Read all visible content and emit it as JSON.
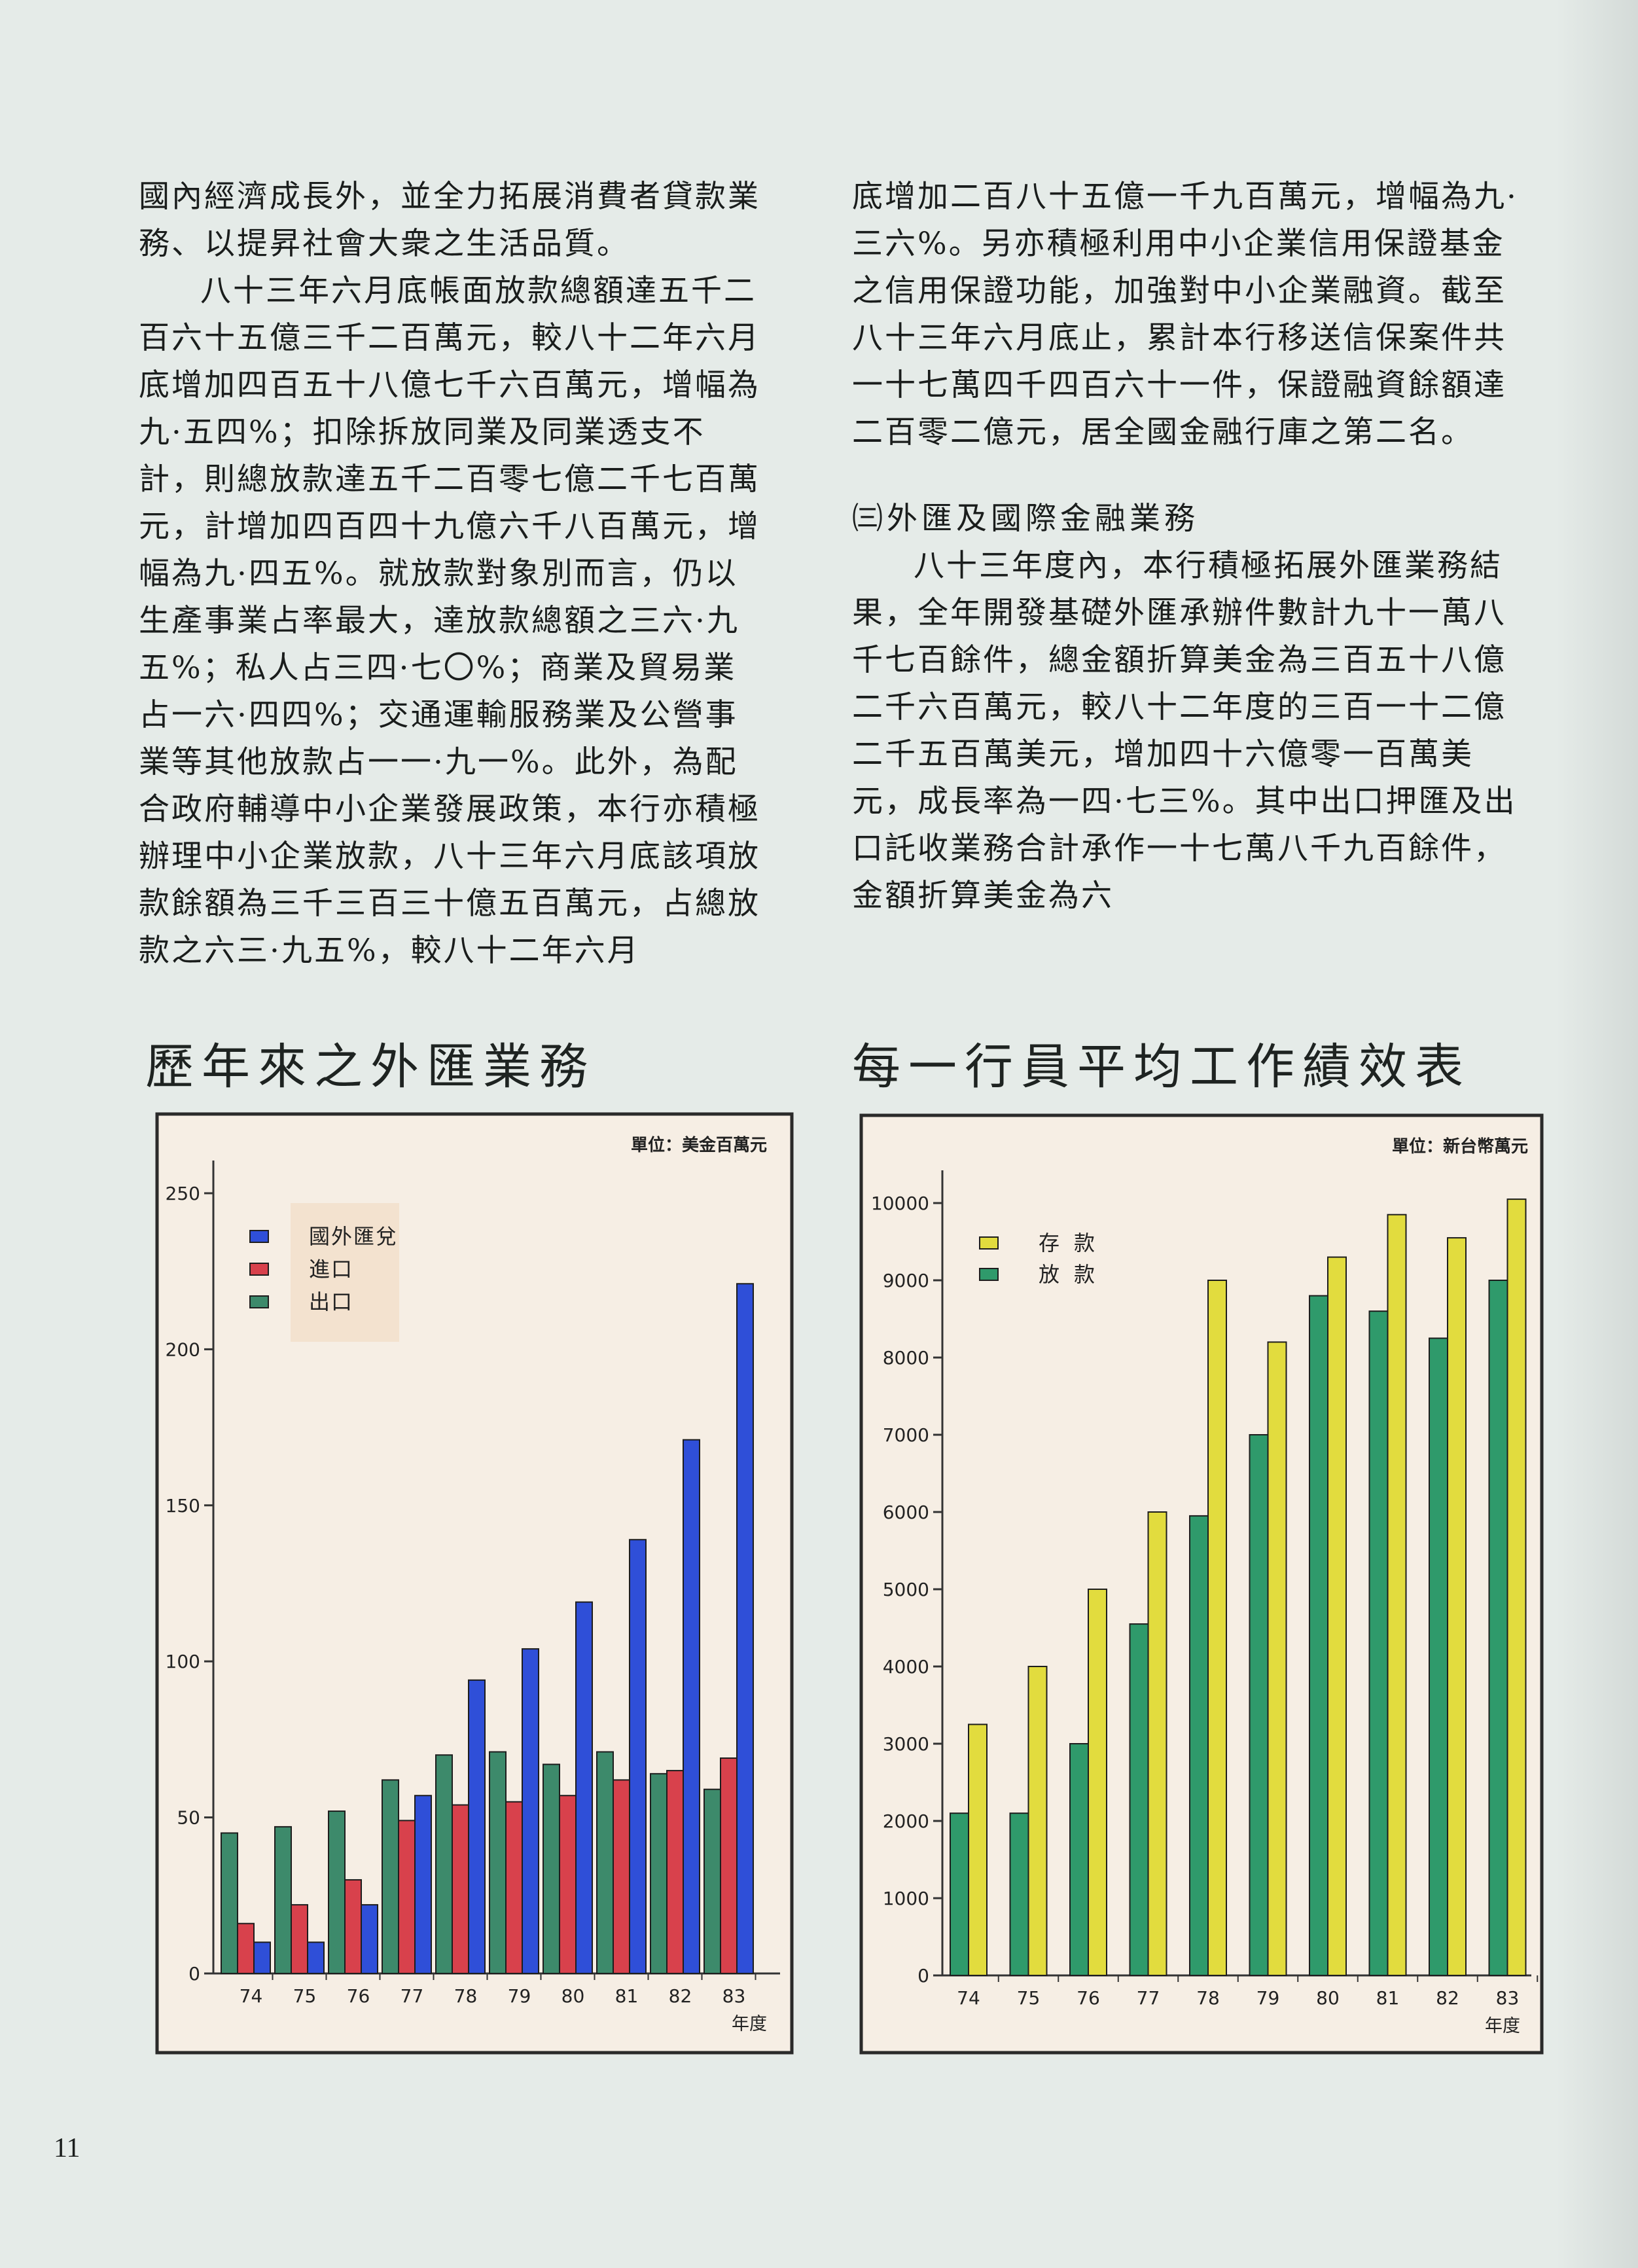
{
  "text": {
    "left_paragraphs": [
      "國內經濟成長外，並全力拓展消費者貸款業務、以提昇社會大衆之生活品質。",
      "八十三年六月底帳面放款總額達五千二百六十五億三千二百萬元，較八十二年六月底增加四百五十八億七千六百萬元，增幅為九·五四%；扣除拆放同業及同業透支不計，則總放款達五千二百零七億二千七百萬元，計增加四百四十九億六千八百萬元，增幅為九·四五%。就放款對象別而言，仍以生產事業占率最大，達放款總額之三六·九五%；私人占三四·七〇%；商業及貿易業占一六·四四%；交通運輸服務業及公營事業等其他放款占一一·九一%。此外，為配合政府輔導中小企業發展政策，本行亦積極辦理中小企業放款，八十三年六月底該項放款餘額為三千三百三十億五百萬元，占總放款之六三·九五%，較八十二年六月"
    ],
    "right_paragraphs": [
      "底增加二百八十五億一千九百萬元，增幅為九·三六%。另亦積極利用中小企業信用保證基金之信用保證功能，加強對中小企業融資。截至八十三年六月底止，累計本行移送信保案件共一十七萬四千四百六十一件，保證融資餘額達二百零二億元，居全國金融行庫之第二名。"
    ],
    "section_heading": "㈢外匯及國際金融業務",
    "section_paragraph": "八十三年度內，本行積極拓展外匯業務結果，全年開發基礎外匯承辦件數計九十一萬八千七百餘件，總金額折算美金為三百五十八億二千六百萬元，較八十二年度的三百一十二億二千五百萬美元，增加四十六億零一百萬美元，成長率為一四·七三%。其中出口押匯及出口託收業務合計承作一十七萬八千九百餘件，金額折算美金為六"
  },
  "page_number": "11",
  "chart_data": [
    {
      "type": "bar",
      "title": "歷年來之外匯業務",
      "unit": "單位：美金百萬元",
      "xlabel": "年度",
      "categories": [
        "74",
        "75",
        "76",
        "77",
        "78",
        "79",
        "80",
        "81",
        "82",
        "83"
      ],
      "series": [
        {
          "name": "出口",
          "color": "#3d8a6b",
          "values": [
            45,
            47,
            52,
            62,
            70,
            71,
            67,
            71,
            64,
            59
          ]
        },
        {
          "name": "進口",
          "color": "#d8414c",
          "values": [
            16,
            22,
            30,
            49,
            54,
            55,
            57,
            62,
            65,
            69
          ]
        },
        {
          "name": "國外匯兌",
          "color": "#2f4fd8",
          "values": [
            10,
            10,
            22,
            57,
            94,
            104,
            119,
            139,
            171,
            221
          ]
        }
      ],
      "legend_order": [
        "國外匯兌",
        "進口",
        "出口"
      ],
      "ylim": [
        0,
        250
      ],
      "yticks": [
        0,
        50,
        100,
        150,
        200,
        250
      ]
    },
    {
      "type": "bar",
      "title": "每一行員平均工作績效表",
      "unit": "單位：新台幣萬元",
      "xlabel": "年度",
      "categories": [
        "74",
        "75",
        "76",
        "77",
        "78",
        "79",
        "80",
        "81",
        "82",
        "83"
      ],
      "series": [
        {
          "name": "放款",
          "color": "#2f9a6b",
          "values": [
            2100,
            2100,
            3000,
            4550,
            5950,
            7000,
            8800,
            8600,
            8250,
            9000
          ]
        },
        {
          "name": "存款",
          "color": "#e2dc3e",
          "values": [
            3250,
            4000,
            5000,
            6000,
            9000,
            8200,
            9300,
            9850,
            9550,
            10050
          ]
        }
      ],
      "legend_order": [
        "存款",
        "放款"
      ],
      "ylim": [
        0,
        10000
      ],
      "yticks": [
        0,
        1000,
        2000,
        3000,
        4000,
        5000,
        6000,
        7000,
        8000,
        9000,
        10000
      ]
    }
  ]
}
